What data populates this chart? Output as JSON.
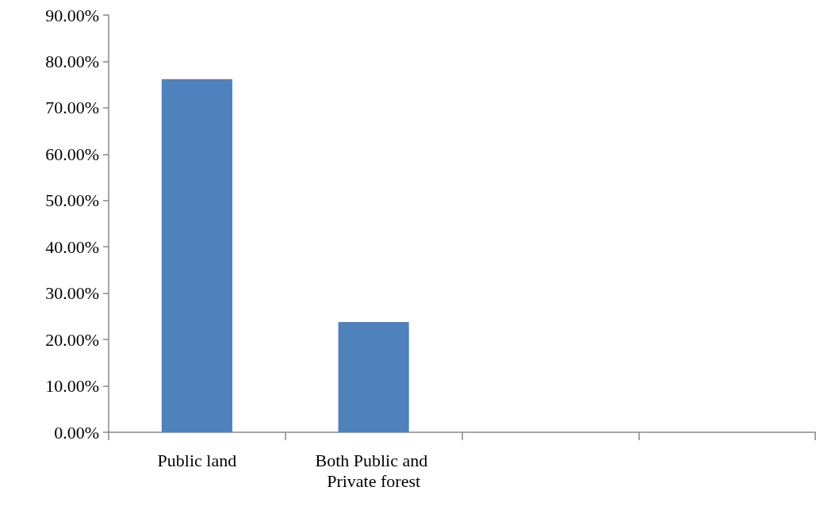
{
  "chart_data": {
    "type": "bar",
    "categories": [
      "Public land",
      "Both Public and Private forest",
      null,
      null
    ],
    "values": [
      76.2,
      23.8,
      null,
      null
    ],
    "color": "#4f81bd",
    "ylim": [
      0,
      90
    ],
    "yticks": [
      {
        "value": 0,
        "label": "0.00%"
      },
      {
        "value": 10,
        "label": "10.00%"
      },
      {
        "value": 20,
        "label": "20.00%"
      },
      {
        "value": 30,
        "label": "30.00%"
      },
      {
        "value": 40,
        "label": "40.00%"
      },
      {
        "value": 50,
        "label": "50.00%"
      },
      {
        "value": 60,
        "label": "60.00%"
      },
      {
        "value": 70,
        "label": "70.00%"
      },
      {
        "value": 80,
        "label": "80.00%"
      },
      {
        "value": 90,
        "label": "90.00%"
      }
    ],
    "grid": false
  }
}
